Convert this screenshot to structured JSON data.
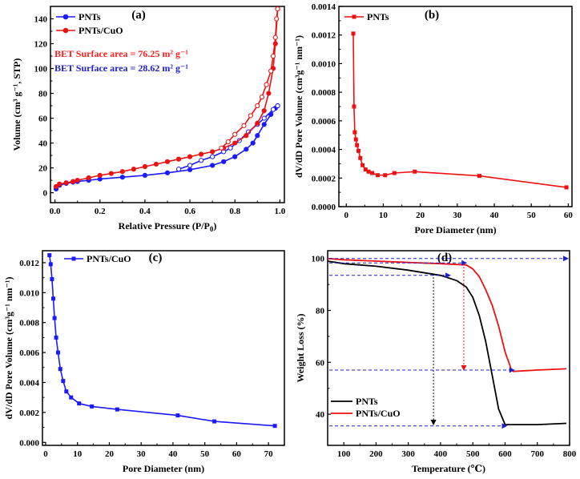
{
  "chart_data": [
    {
      "panel_label": "(a)",
      "type": "line",
      "xlabel": "Relative Pressure (P/P",
      "xlabel_sub": "0",
      "xlabel_tail": ")",
      "ylabel": "Volume (cm³ g⁻¹, STP)",
      "xlim": [
        -0.02,
        1.02
      ],
      "ylim": [
        -8,
        150
      ],
      "xticks": [
        0.0,
        0.2,
        0.4,
        0.6,
        0.8,
        1.0
      ],
      "xtick_labels": [
        "0.0",
        "0.2",
        "0.4",
        "0.6",
        "0.8",
        "1.0"
      ],
      "yticks": [
        0,
        20,
        40,
        60,
        80,
        100,
        120,
        140
      ],
      "ytick_labels": [
        "0",
        "20",
        "40",
        "60",
        "80",
        "100",
        "120",
        "140"
      ],
      "legend": [
        "PNTs",
        "PNTs/CuO"
      ],
      "annotations": [
        {
          "text": "BET Surface area = 76.25 m² g⁻¹",
          "color": "#ff2020"
        },
        {
          "text": "BET Surface area = 28.62 m² g⁻¹",
          "color": "#2020d0"
        }
      ],
      "series": [
        {
          "name": "PNTs",
          "color": "#1a1aff",
          "marker": "circle",
          "adsorption": {
            "x": [
              0.005,
              0.02,
              0.05,
              0.08,
              0.1,
              0.15,
              0.2,
              0.3,
              0.4,
              0.5,
              0.6,
              0.7,
              0.75,
              0.8,
              0.85,
              0.88,
              0.9,
              0.93,
              0.96,
              0.98,
              0.99
            ],
            "y": [
              3,
              6,
              7.5,
              8.5,
              9,
              10,
              11,
              12.5,
              14,
              16,
              18.5,
              22,
              25,
              29,
              35,
              40,
              46,
              55,
              63,
              68,
              70
            ]
          },
          "desorption": {
            "x": [
              0.99,
              0.97,
              0.93,
              0.9,
              0.86,
              0.82,
              0.78,
              0.75,
              0.7,
              0.65,
              0.6,
              0.55
            ],
            "y": [
              70,
              67,
              60,
              55,
              49,
              42,
              36,
              33,
              29,
              26,
              22,
              19
            ]
          }
        },
        {
          "name": "PNTs/CuO",
          "color": "#ee1111",
          "marker": "circle",
          "adsorption": {
            "x": [
              0.005,
              0.02,
              0.05,
              0.08,
              0.1,
              0.15,
              0.2,
              0.25,
              0.3,
              0.35,
              0.4,
              0.45,
              0.5,
              0.55,
              0.6,
              0.65,
              0.7,
              0.75,
              0.8,
              0.85,
              0.9,
              0.93,
              0.95,
              0.97,
              0.98,
              0.99
            ],
            "y": [
              5,
              7,
              8,
              9,
              10,
              12,
              14,
              15.5,
              17,
              19,
              21,
              23,
              25,
              27,
              29,
              31,
              33,
              36,
              40,
              46,
              56,
              66,
              80,
              100,
              120,
              148
            ]
          },
          "desorption": {
            "x": [
              0.99,
              0.985,
              0.98,
              0.97,
              0.96,
              0.94,
              0.92,
              0.9,
              0.87,
              0.84,
              0.8,
              0.77,
              0.74
            ],
            "y": [
              148,
              140,
              125,
              110,
              98,
              87,
              77,
              70,
              62,
              54,
              47,
              41,
              36
            ]
          }
        }
      ]
    },
    {
      "panel_label": "(b)",
      "type": "line",
      "xlabel": "Pore Diameter (nm)",
      "ylabel": "dV/dD Pore Volume (cm³g⁻¹ nm⁻¹)",
      "xlim": [
        -2,
        61
      ],
      "ylim": [
        0,
        0.0014
      ],
      "xticks": [
        0,
        10,
        20,
        30,
        40,
        50,
        60
      ],
      "xtick_labels": [
        "0",
        "10",
        "20",
        "30",
        "40",
        "50",
        "60"
      ],
      "yticks": [
        0.0,
        0.0002,
        0.0004,
        0.0006,
        0.0008,
        0.001,
        0.0012,
        0.0014
      ],
      "ytick_labels": [
        "0.0000",
        "0.0002",
        "0.0004",
        "0.0006",
        "0.0008",
        "0.0010",
        "0.0012",
        "0.0014"
      ],
      "legend": [
        "PNTs"
      ],
      "series": [
        {
          "name": "PNTs",
          "color": "#ee1111",
          "marker": "square",
          "x": [
            1.9,
            2.1,
            2.3,
            2.6,
            2.9,
            3.3,
            3.8,
            4.4,
            5.2,
            6.0,
            7.0,
            8.5,
            10.5,
            13,
            18.5,
            36,
            59.5
          ],
          "y": [
            0.00121,
            0.0007,
            0.00052,
            0.00047,
            0.00043,
            0.00039,
            0.00034,
            0.00029,
            0.00026,
            0.000245,
            0.000235,
            0.00022,
            0.00022,
            0.000235,
            0.000245,
            0.000215,
            0.000135
          ]
        }
      ]
    },
    {
      "panel_label": "(c)",
      "type": "line",
      "xlabel": "Pore Diameter (nm)",
      "ylabel": "dV/dD Pore Volume (cm³g⁻¹ nm⁻¹)",
      "xlim": [
        -1,
        75
      ],
      "ylim": [
        -0.0002,
        0.0128
      ],
      "xticks": [
        0,
        10,
        20,
        30,
        40,
        50,
        60,
        70
      ],
      "xtick_labels": [
        "0",
        "10",
        "20",
        "30",
        "40",
        "50",
        "60",
        "70"
      ],
      "yticks": [
        0.0,
        0.002,
        0.004,
        0.006,
        0.008,
        0.01,
        0.012
      ],
      "ytick_labels": [
        "0.000",
        "0.002",
        "0.004",
        "0.006",
        "0.008",
        "0.010",
        "0.012"
      ],
      "legend": [
        "PNTs/CuO"
      ],
      "series": [
        {
          "name": "PNTs/CuO",
          "color": "#1a1aff",
          "marker": "square",
          "x": [
            1.2,
            1.6,
            2.0,
            2.4,
            2.8,
            3.3,
            3.9,
            4.6,
            5.5,
            6.5,
            8,
            10.5,
            14.5,
            22.5,
            41.5,
            53,
            72
          ],
          "y": [
            0.0125,
            0.0119,
            0.0109,
            0.0096,
            0.0083,
            0.007,
            0.006,
            0.0049,
            0.0041,
            0.0034,
            0.003,
            0.0026,
            0.0024,
            0.0022,
            0.0018,
            0.0014,
            0.0011
          ]
        }
      ]
    },
    {
      "panel_label": "(d)",
      "type": "line",
      "xlabel": "Temperature (℃)",
      "ylabel": "Weight Loss (%)",
      "xlim": [
        50,
        800
      ],
      "ylim": [
        28,
        103
      ],
      "xticks": [
        100,
        200,
        300,
        400,
        500,
        600,
        700,
        800
      ],
      "xtick_labels": [
        "100",
        "200",
        "300",
        "400",
        "500",
        "600",
        "700",
        "800"
      ],
      "yticks": [
        40,
        60,
        80,
        100
      ],
      "ytick_labels": [
        "40",
        "60",
        "80",
        "100"
      ],
      "legend": [
        "PNTs",
        "PNTs/CuO"
      ],
      "series": [
        {
          "name": "PNTs",
          "color": "#000000",
          "x": [
            50,
            100,
            200,
            300,
            400,
            450,
            480,
            500,
            520,
            540,
            560,
            580,
            600,
            700,
            790
          ],
          "y": [
            99,
            98,
            97,
            95.5,
            93.5,
            91.5,
            89,
            85,
            78,
            68,
            55,
            42,
            36,
            36,
            36.5
          ]
        },
        {
          "name": "PNTs/CuO",
          "color": "#ee1111",
          "x": [
            50,
            100,
            200,
            300,
            400,
            480,
            500,
            520,
            540,
            560,
            580,
            600,
            620,
            625,
            700,
            790
          ],
          "y": [
            100,
            99.5,
            99,
            98.5,
            98,
            97.5,
            96,
            93,
            88,
            82,
            74,
            64,
            57,
            56.5,
            57,
            57.5
          ]
        }
      ]
    }
  ]
}
